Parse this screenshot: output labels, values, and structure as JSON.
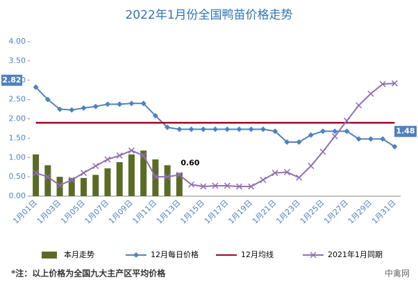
{
  "chart_data": {
    "type": "combo",
    "title": "2022年1月份全国鸭苗价格走势",
    "categories": [
      "1月01日",
      null,
      "1月03日",
      null,
      "1月05日",
      null,
      "1月07日",
      null,
      "1月09日",
      null,
      "1月11日",
      null,
      "1月13日",
      null,
      "1月15日",
      null,
      "1月17日",
      null,
      "1月19日",
      null,
      "1月21日",
      null,
      "1月23日",
      null,
      "1月25日",
      null,
      "1月27日",
      null,
      "1月29日",
      null,
      "1月31日"
    ],
    "ylim": [
      0,
      4
    ],
    "yticks": [
      {
        "value": 0,
        "label": "0.00"
      },
      {
        "value": 0.5,
        "label": "0.50"
      },
      {
        "value": 1,
        "label": "1.00"
      },
      {
        "value": 1.5,
        "label": "1.50"
      },
      {
        "value": 2,
        "label": "2.00"
      },
      {
        "value": 2.5,
        "label": "2.50"
      },
      {
        "value": 3,
        "label": "3.00"
      },
      {
        "value": 3.5,
        "label": "3.50"
      },
      {
        "value": 4,
        "label": "4.00"
      }
    ],
    "grid": false,
    "series": [
      {
        "name": "本月走势",
        "kind": "bar",
        "color": "#5b6b26",
        "values": [
          1.08,
          0.8,
          0.5,
          0.47,
          0.47,
          0.55,
          0.72,
          0.88,
          1.08,
          1.18,
          0.95,
          0.8,
          0.6,
          null,
          null,
          null,
          null,
          null,
          null,
          null,
          null,
          null,
          null,
          null,
          null,
          null,
          null,
          null,
          null,
          null,
          null
        ],
        "value_labels": [
          null,
          null,
          null,
          null,
          null,
          null,
          null,
          null,
          null,
          null,
          null,
          null,
          "0.60",
          null,
          null,
          null,
          null,
          null,
          null,
          null,
          null,
          null,
          null,
          null,
          null,
          null,
          null,
          null,
          null,
          null,
          null
        ]
      },
      {
        "name": "12月每日价格",
        "kind": "line",
        "marker": "diamond",
        "color": "#4f81bd",
        "values": [
          2.82,
          2.5,
          2.25,
          2.23,
          2.28,
          2.32,
          2.38,
          2.38,
          2.4,
          2.4,
          2.08,
          1.78,
          1.73,
          1.73,
          1.73,
          1.73,
          1.73,
          1.73,
          1.73,
          1.73,
          1.68,
          1.4,
          1.4,
          1.58,
          1.68,
          1.68,
          1.68,
          1.48,
          1.48,
          1.48,
          1.28
        ],
        "value_labels": [
          "2.82",
          null,
          null,
          null,
          null,
          null,
          null,
          null,
          null,
          null,
          null,
          null,
          null,
          null,
          null,
          null,
          null,
          null,
          null,
          null,
          null,
          null,
          null,
          null,
          null,
          null,
          null,
          null,
          null,
          null,
          null
        ]
      },
      {
        "name": "12月均线",
        "kind": "line",
        "marker": "none",
        "color": "#a50021",
        "values": [
          1.9,
          1.9,
          1.9,
          1.9,
          1.9,
          1.9,
          1.9,
          1.9,
          1.9,
          1.9,
          1.9,
          1.9,
          1.9,
          1.9,
          1.9,
          1.9,
          1.9,
          1.9,
          1.9,
          1.9,
          1.9,
          1.9,
          1.9,
          1.9,
          1.9,
          1.9,
          1.9,
          1.9,
          1.9,
          1.9,
          1.9
        ]
      },
      {
        "name": "2021年1月同期",
        "kind": "line",
        "marker": "x",
        "color": "#8e6fb5",
        "values": [
          0.6,
          0.5,
          0.28,
          0.42,
          0.6,
          0.78,
          0.95,
          1.05,
          1.18,
          1.05,
          0.5,
          0.5,
          0.55,
          0.3,
          0.25,
          0.27,
          0.27,
          0.25,
          0.25,
          0.42,
          0.6,
          0.62,
          0.48,
          0.78,
          1.15,
          1.55,
          1.95,
          2.35,
          2.65,
          2.9,
          2.92
        ]
      }
    ],
    "annotations": [
      "1.48"
    ],
    "note": "*注：以上价格为全国九大主产区平均价格",
    "brand": "中禽网"
  }
}
